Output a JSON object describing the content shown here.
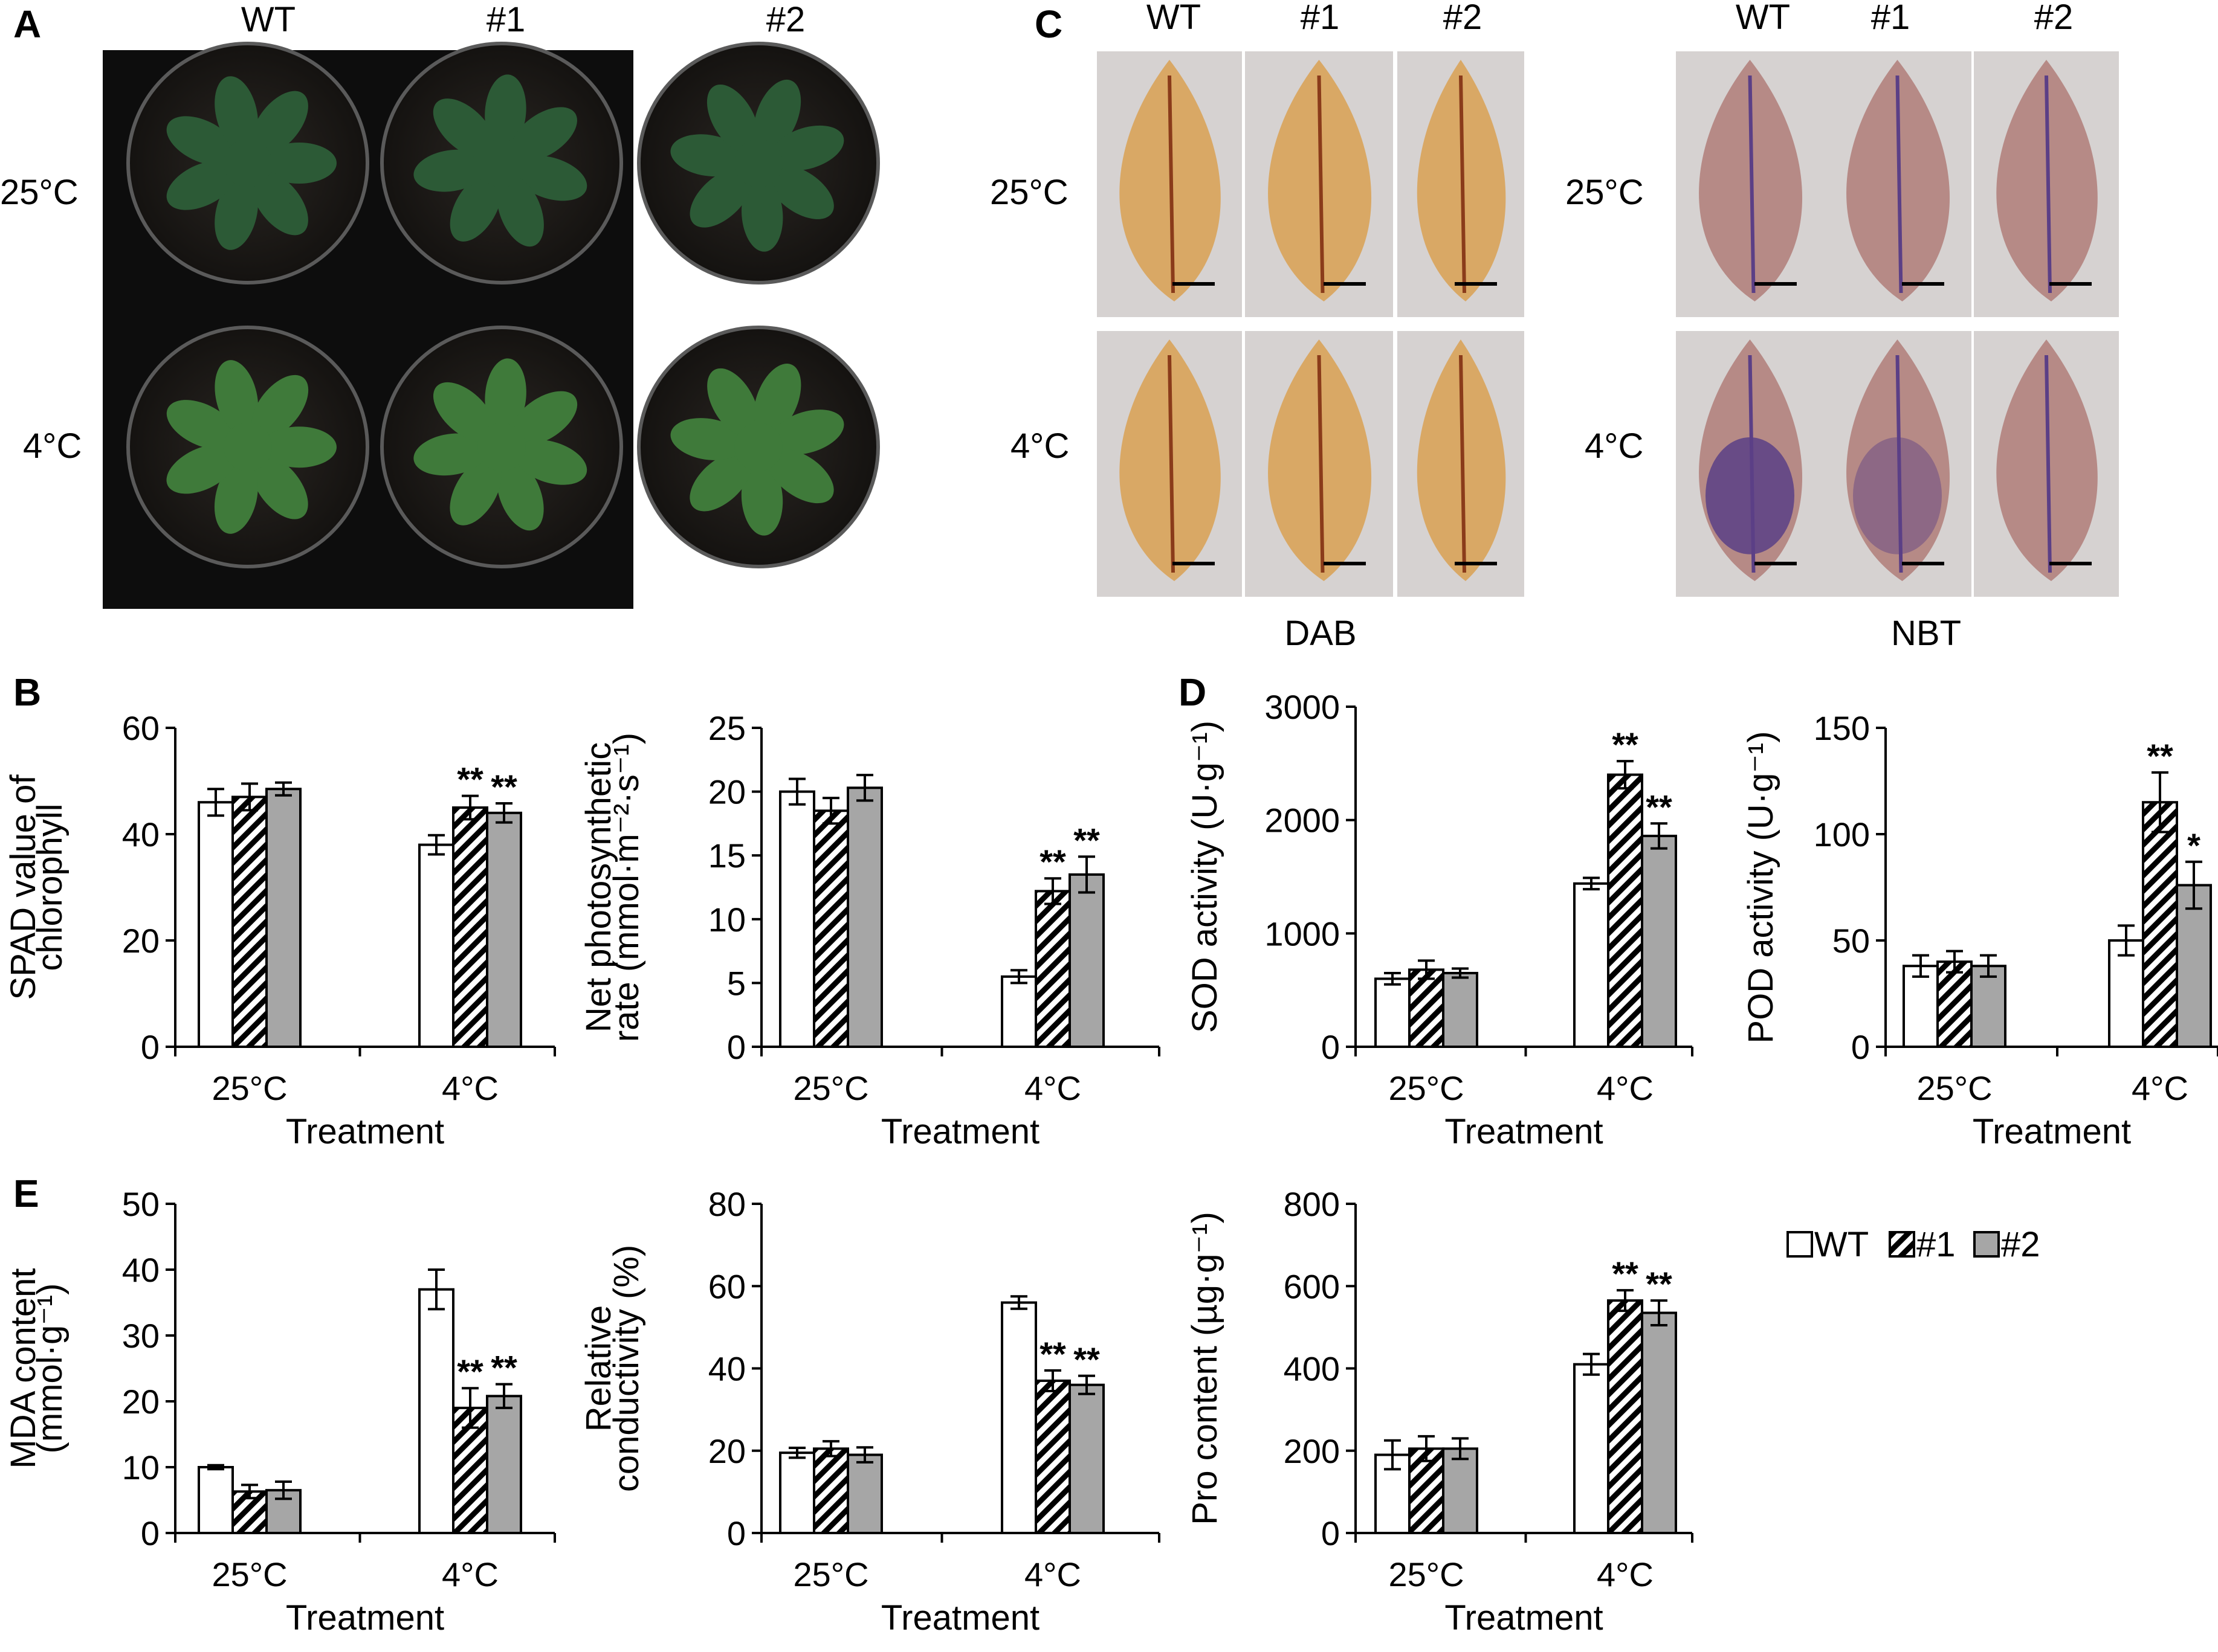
{
  "panels": {
    "A": {
      "letter": "A",
      "col_labels": [
        "WT",
        "#1",
        "#2"
      ],
      "row_labels": [
        "25°C",
        "4°C"
      ]
    },
    "B": {
      "letter": "B"
    },
    "C": {
      "letter": "C",
      "col_labels_dab": [
        "WT",
        "#1",
        "#2"
      ],
      "col_labels_nbt": [
        "WT",
        "#1",
        "#2"
      ],
      "row_labels_dab": [
        "25°C",
        "4°C"
      ],
      "row_labels_nbt": [
        "25°C",
        "4°C"
      ],
      "stain_dab": "DAB",
      "stain_nbt": "NBT"
    },
    "D": {
      "letter": "D"
    },
    "E": {
      "letter": "E"
    }
  },
  "colors": {
    "photo_bg": "#0d0d0d",
    "pot_rim": "#5a5a5a",
    "leaf_green": "#3f7a3a",
    "leaf_dark": "#2c5a36",
    "dab_stain": "#d9a865",
    "dab_bg": "#d6d2d1",
    "nbt_stain": "#b68a86",
    "nbt_dark": "#5b3f86",
    "bar_wt": "#ffffff",
    "bar_l2": "#a6a6a6"
  },
  "legend": {
    "items": [
      "WT",
      "#1",
      "#2"
    ]
  },
  "chart_data": [
    {
      "id": "B1",
      "type": "bar",
      "categories": [
        "25°C",
        "4°C"
      ],
      "xlabel": "Treatment",
      "ylabel": [
        "SPAD value of",
        "chlorophyll"
      ],
      "ylim": [
        0,
        60
      ],
      "yticks": [
        0,
        20,
        40,
        60
      ],
      "series": [
        {
          "name": "WT",
          "values": [
            46,
            38
          ],
          "err": [
            2.5,
            1.8
          ]
        },
        {
          "name": "#1",
          "values": [
            47,
            45
          ],
          "err": [
            2.5,
            2.2
          ]
        },
        {
          "name": "#2",
          "values": [
            48.5,
            44
          ],
          "err": [
            1.2,
            1.8
          ]
        }
      ],
      "sig": [
        [
          "",
          ""
        ],
        [
          "",
          "**"
        ],
        [
          "",
          "**"
        ]
      ]
    },
    {
      "id": "B2",
      "type": "bar",
      "categories": [
        "25°C",
        "4°C"
      ],
      "xlabel": "Treatment",
      "ylabel": [
        "Net photosynthetic",
        "rate (mmol·m⁻²·s⁻¹)"
      ],
      "ylim": [
        0,
        25
      ],
      "yticks": [
        0,
        5,
        10,
        15,
        20,
        25
      ],
      "series": [
        {
          "name": "WT",
          "values": [
            20,
            5.5
          ],
          "err": [
            1.0,
            0.5
          ]
        },
        {
          "name": "#1",
          "values": [
            18.5,
            12.2
          ],
          "err": [
            1.0,
            1.0
          ]
        },
        {
          "name": "#2",
          "values": [
            20.3,
            13.5
          ],
          "err": [
            1.0,
            1.4
          ]
        }
      ],
      "sig": [
        [
          "",
          ""
        ],
        [
          "",
          "**"
        ],
        [
          "",
          "**"
        ]
      ]
    },
    {
      "id": "D1",
      "type": "bar",
      "categories": [
        "25°C",
        "4°C"
      ],
      "xlabel": "Treatment",
      "ylabel": [
        "SOD activity (U·g⁻¹)"
      ],
      "ylim": [
        0,
        3000
      ],
      "yticks": [
        0,
        1000,
        2000,
        3000
      ],
      "series": [
        {
          "name": "WT",
          "values": [
            600,
            1440
          ],
          "err": [
            50,
            50
          ]
        },
        {
          "name": "#1",
          "values": [
            680,
            2400
          ],
          "err": [
            80,
            120
          ]
        },
        {
          "name": "#2",
          "values": [
            650,
            1860
          ],
          "err": [
            40,
            110
          ]
        }
      ],
      "sig": [
        [
          "",
          ""
        ],
        [
          "",
          "**"
        ],
        [
          "",
          "**"
        ]
      ]
    },
    {
      "id": "D2",
      "type": "bar",
      "categories": [
        "25°C",
        "4°C"
      ],
      "xlabel": "Treatment",
      "ylabel": [
        "POD activity (U·g⁻¹)"
      ],
      "ylim": [
        0,
        150
      ],
      "yticks": [
        0,
        50,
        100,
        150
      ],
      "series": [
        {
          "name": "WT",
          "values": [
            38,
            50
          ],
          "err": [
            5,
            7
          ]
        },
        {
          "name": "#1",
          "values": [
            40,
            115
          ],
          "err": [
            5,
            14
          ]
        },
        {
          "name": "#2",
          "values": [
            38,
            76
          ],
          "err": [
            5,
            11
          ]
        }
      ],
      "sig": [
        [
          "",
          ""
        ],
        [
          "",
          "**"
        ],
        [
          "",
          "*"
        ]
      ]
    },
    {
      "id": "E1",
      "type": "bar",
      "categories": [
        "25°C",
        "4°C"
      ],
      "xlabel": "Treatment",
      "ylabel": [
        "MDA content",
        "(mmol·g⁻¹)"
      ],
      "ylim": [
        0,
        50
      ],
      "yticks": [
        0,
        10,
        20,
        30,
        40,
        50
      ],
      "series": [
        {
          "name": "WT",
          "values": [
            10,
            37
          ],
          "err": [
            0.3,
            3.0
          ]
        },
        {
          "name": "#1",
          "values": [
            6.3,
            19
          ],
          "err": [
            1.0,
            3.0
          ]
        },
        {
          "name": "#2",
          "values": [
            6.5,
            20.8
          ],
          "err": [
            1.3,
            1.8
          ]
        }
      ],
      "sig": [
        [
          "",
          ""
        ],
        [
          "",
          "**"
        ],
        [
          "",
          "**"
        ]
      ]
    },
    {
      "id": "E2",
      "type": "bar",
      "categories": [
        "25°C",
        "4°C"
      ],
      "xlabel": "Treatment",
      "ylabel": [
        "Relative",
        "conductivity (%)"
      ],
      "ylim": [
        0,
        80
      ],
      "yticks": [
        0,
        20,
        40,
        60,
        80
      ],
      "series": [
        {
          "name": "WT",
          "values": [
            19.5,
            56
          ],
          "err": [
            1.2,
            1.5
          ]
        },
        {
          "name": "#1",
          "values": [
            20.5,
            37
          ],
          "err": [
            1.8,
            2.5
          ]
        },
        {
          "name": "#2",
          "values": [
            19,
            36
          ],
          "err": [
            1.8,
            2.2
          ]
        }
      ],
      "sig": [
        [
          "",
          ""
        ],
        [
          "",
          "**"
        ],
        [
          "",
          "**"
        ]
      ]
    },
    {
      "id": "E3",
      "type": "bar",
      "categories": [
        "25°C",
        "4°C"
      ],
      "xlabel": "Treatment",
      "ylabel": [
        "Pro content (µg·g⁻¹)"
      ],
      "ylim": [
        0,
        800
      ],
      "yticks": [
        0,
        200,
        400,
        600,
        800
      ],
      "series": [
        {
          "name": "WT",
          "values": [
            190,
            410
          ],
          "err": [
            35,
            25
          ]
        },
        {
          "name": "#1",
          "values": [
            205,
            565
          ],
          "err": [
            30,
            25
          ]
        },
        {
          "name": "#2",
          "values": [
            205,
            535
          ],
          "err": [
            25,
            30
          ]
        }
      ],
      "sig": [
        [
          "",
          ""
        ],
        [
          "",
          "**"
        ],
        [
          "",
          "**"
        ]
      ]
    }
  ]
}
